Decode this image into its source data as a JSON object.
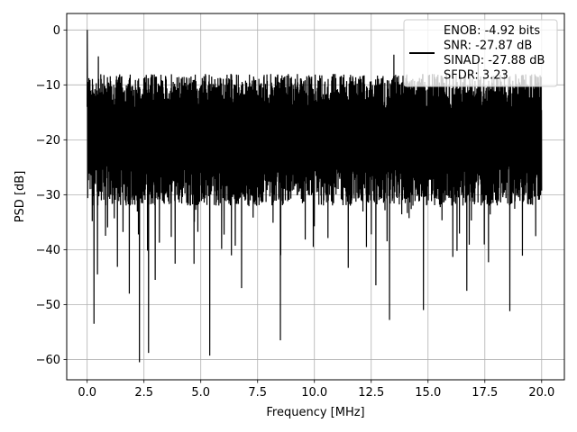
{
  "chart_data": {
    "type": "line",
    "xlabel": "Frequency [MHz]",
    "ylabel": "PSD [dB]",
    "xlim": [
      -0.9,
      21.0
    ],
    "ylim": [
      -63.7,
      3.0
    ],
    "xticks": [
      0.0,
      2.5,
      5.0,
      7.5,
      10.0,
      12.5,
      15.0,
      17.5,
      20.0
    ],
    "xtick_labels": [
      "0.0",
      "2.5",
      "5.0",
      "7.5",
      "10.0",
      "12.5",
      "15.0",
      "17.5",
      "20.0"
    ],
    "yticks": [
      0,
      -10,
      -20,
      -30,
      -40,
      -50,
      -60
    ],
    "ytick_labels": [
      "0",
      "−10",
      "−20",
      "−30",
      "−40",
      "−50",
      "−60"
    ],
    "grid": true,
    "legend_position": "top-right",
    "series": [
      {
        "name": "ENOB: -4.92 bits\nSNR: -27.87 dB\nSINAD: -27.88 dB\nSFDR: 3.23",
        "legend_lines": [
          "ENOB: -4.92 bits",
          "SNR: -27.87 dB",
          "SINAD: -27.88 dB",
          "SFDR: 3.23"
        ],
        "color": "#000000",
        "x_range": [
          0.0,
          20.0
        ],
        "envelope_top": -8.0,
        "envelope_bottom": -28.0,
        "peaks": [
          {
            "x": 0.0,
            "y": 0.0
          },
          {
            "x": 0.5,
            "y": -4.8
          },
          {
            "x": 13.5,
            "y": -4.5
          },
          {
            "x": 17.2,
            "y": -5.2
          }
        ],
        "dips": [
          {
            "x": 0.3,
            "y": -53.5
          },
          {
            "x": 0.45,
            "y": -44.5
          },
          {
            "x": 1.85,
            "y": -48.0
          },
          {
            "x": 2.3,
            "y": -60.5
          },
          {
            "x": 2.7,
            "y": -58.8
          },
          {
            "x": 3.0,
            "y": -45.5
          },
          {
            "x": 5.4,
            "y": -59.3
          },
          {
            "x": 6.8,
            "y": -47.0
          },
          {
            "x": 8.5,
            "y": -56.5
          },
          {
            "x": 12.7,
            "y": -46.5
          },
          {
            "x": 13.3,
            "y": -52.8
          },
          {
            "x": 14.8,
            "y": -51.0
          },
          {
            "x": 16.7,
            "y": -47.5
          },
          {
            "x": 18.6,
            "y": -51.2
          }
        ]
      }
    ]
  }
}
